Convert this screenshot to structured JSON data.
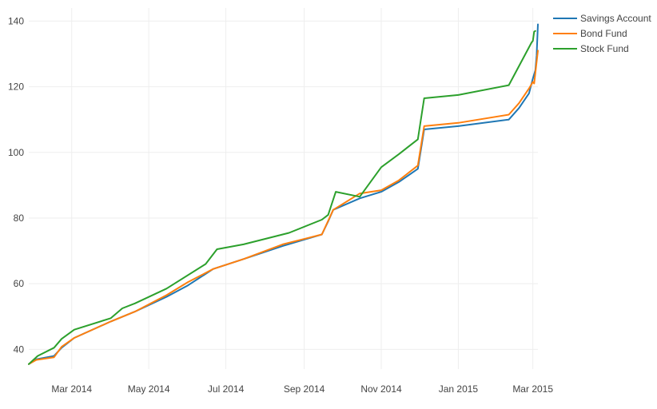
{
  "chart_data": {
    "type": "line",
    "title": "",
    "xlabel": "",
    "ylabel": "",
    "grid": true,
    "legend_position": "top-right",
    "xlim": [
      "2014-01-26",
      "2015-03-05"
    ],
    "ylim": [
      34,
      144
    ],
    "x_ticks": [
      {
        "date": "2014-03-01",
        "label": "Mar 2014"
      },
      {
        "date": "2014-05-01",
        "label": "May 2014"
      },
      {
        "date": "2014-07-01",
        "label": "Jul 2014"
      },
      {
        "date": "2014-09-01",
        "label": "Sep 2014"
      },
      {
        "date": "2014-11-01",
        "label": "Nov 2014"
      },
      {
        "date": "2015-01-01",
        "label": "Jan 2015"
      },
      {
        "date": "2015-03-01",
        "label": "Mar 2015"
      }
    ],
    "y_ticks": [
      {
        "value": 40,
        "label": "40"
      },
      {
        "value": 60,
        "label": "60"
      },
      {
        "value": 80,
        "label": "80"
      },
      {
        "value": 100,
        "label": "100"
      },
      {
        "value": 120,
        "label": "120"
      },
      {
        "value": 140,
        "label": "140"
      }
    ],
    "series": [
      {
        "name": "Savings Account",
        "color": "#1f77b4",
        "points": [
          [
            "2014-01-26",
            35.5
          ],
          [
            "2014-02-01",
            37
          ],
          [
            "2014-02-15",
            38
          ],
          [
            "2014-02-21",
            40.5
          ],
          [
            "2014-03-03",
            43.5
          ],
          [
            "2014-04-01",
            48.5
          ],
          [
            "2014-04-20",
            51.5
          ],
          [
            "2014-05-15",
            56
          ],
          [
            "2014-06-01",
            59.5
          ],
          [
            "2014-06-21",
            64.5
          ],
          [
            "2014-07-15",
            67.5
          ],
          [
            "2014-08-15",
            71.5
          ],
          [
            "2014-09-15",
            75
          ],
          [
            "2014-09-20",
            79
          ],
          [
            "2014-09-24",
            82.5
          ],
          [
            "2014-10-15",
            86
          ],
          [
            "2014-11-01",
            88
          ],
          [
            "2014-11-15",
            91
          ],
          [
            "2014-11-30",
            95
          ],
          [
            "2014-12-05",
            107
          ],
          [
            "2015-01-01",
            108
          ],
          [
            "2015-02-10",
            110
          ],
          [
            "2015-02-18",
            113.5
          ],
          [
            "2015-02-26",
            118
          ],
          [
            "2015-03-01",
            122.5
          ],
          [
            "2015-03-03",
            125
          ],
          [
            "2015-03-04",
            129.5
          ],
          [
            "2015-03-05",
            139
          ]
        ]
      },
      {
        "name": "Bond Fund",
        "color": "#ff7f0e",
        "points": [
          [
            "2014-01-26",
            35.5
          ],
          [
            "2014-02-01",
            36.8
          ],
          [
            "2014-02-15",
            37.6
          ],
          [
            "2014-02-21",
            40.8
          ],
          [
            "2014-03-03",
            43.5
          ],
          [
            "2014-04-01",
            48.5
          ],
          [
            "2014-04-20",
            51.5
          ],
          [
            "2014-05-15",
            56.5
          ],
          [
            "2014-06-01",
            60.5
          ],
          [
            "2014-06-21",
            64.5
          ],
          [
            "2014-07-15",
            67.5
          ],
          [
            "2014-08-15",
            72
          ],
          [
            "2014-09-15",
            75
          ],
          [
            "2014-09-24",
            82.5
          ],
          [
            "2014-10-15",
            87.5
          ],
          [
            "2014-11-01",
            88.5
          ],
          [
            "2014-11-15",
            91.5
          ],
          [
            "2014-11-30",
            96
          ],
          [
            "2014-12-05",
            108
          ],
          [
            "2015-01-01",
            109
          ],
          [
            "2015-02-10",
            111.5
          ],
          [
            "2015-02-18",
            115
          ],
          [
            "2015-02-26",
            119.5
          ],
          [
            "2015-03-01",
            121.5
          ],
          [
            "2015-03-02",
            121
          ],
          [
            "2015-03-05",
            131
          ]
        ]
      },
      {
        "name": "Stock Fund",
        "color": "#2ca02c",
        "points": [
          [
            "2014-01-26",
            35.5
          ],
          [
            "2014-02-02",
            38
          ],
          [
            "2014-02-15",
            40.5
          ],
          [
            "2014-02-21",
            43.2
          ],
          [
            "2014-03-03",
            46
          ],
          [
            "2014-04-01",
            49.5
          ],
          [
            "2014-04-10",
            52.5
          ],
          [
            "2014-04-20",
            54
          ],
          [
            "2014-05-15",
            58.5
          ],
          [
            "2014-06-15",
            66
          ],
          [
            "2014-06-24",
            70.5
          ],
          [
            "2014-07-15",
            72
          ],
          [
            "2014-08-20",
            75.5
          ],
          [
            "2014-09-15",
            79.5
          ],
          [
            "2014-09-20",
            81
          ],
          [
            "2014-09-26",
            88
          ],
          [
            "2014-10-15",
            86.5
          ],
          [
            "2014-11-01",
            95.5
          ],
          [
            "2014-11-15",
            99.5
          ],
          [
            "2014-11-30",
            104
          ],
          [
            "2014-12-05",
            116.5
          ],
          [
            "2015-01-01",
            117.5
          ],
          [
            "2015-02-10",
            120.5
          ],
          [
            "2015-02-28",
            133.5
          ],
          [
            "2015-03-01",
            134
          ],
          [
            "2015-03-02",
            136.8
          ],
          [
            "2015-03-03",
            137
          ]
        ]
      }
    ]
  }
}
